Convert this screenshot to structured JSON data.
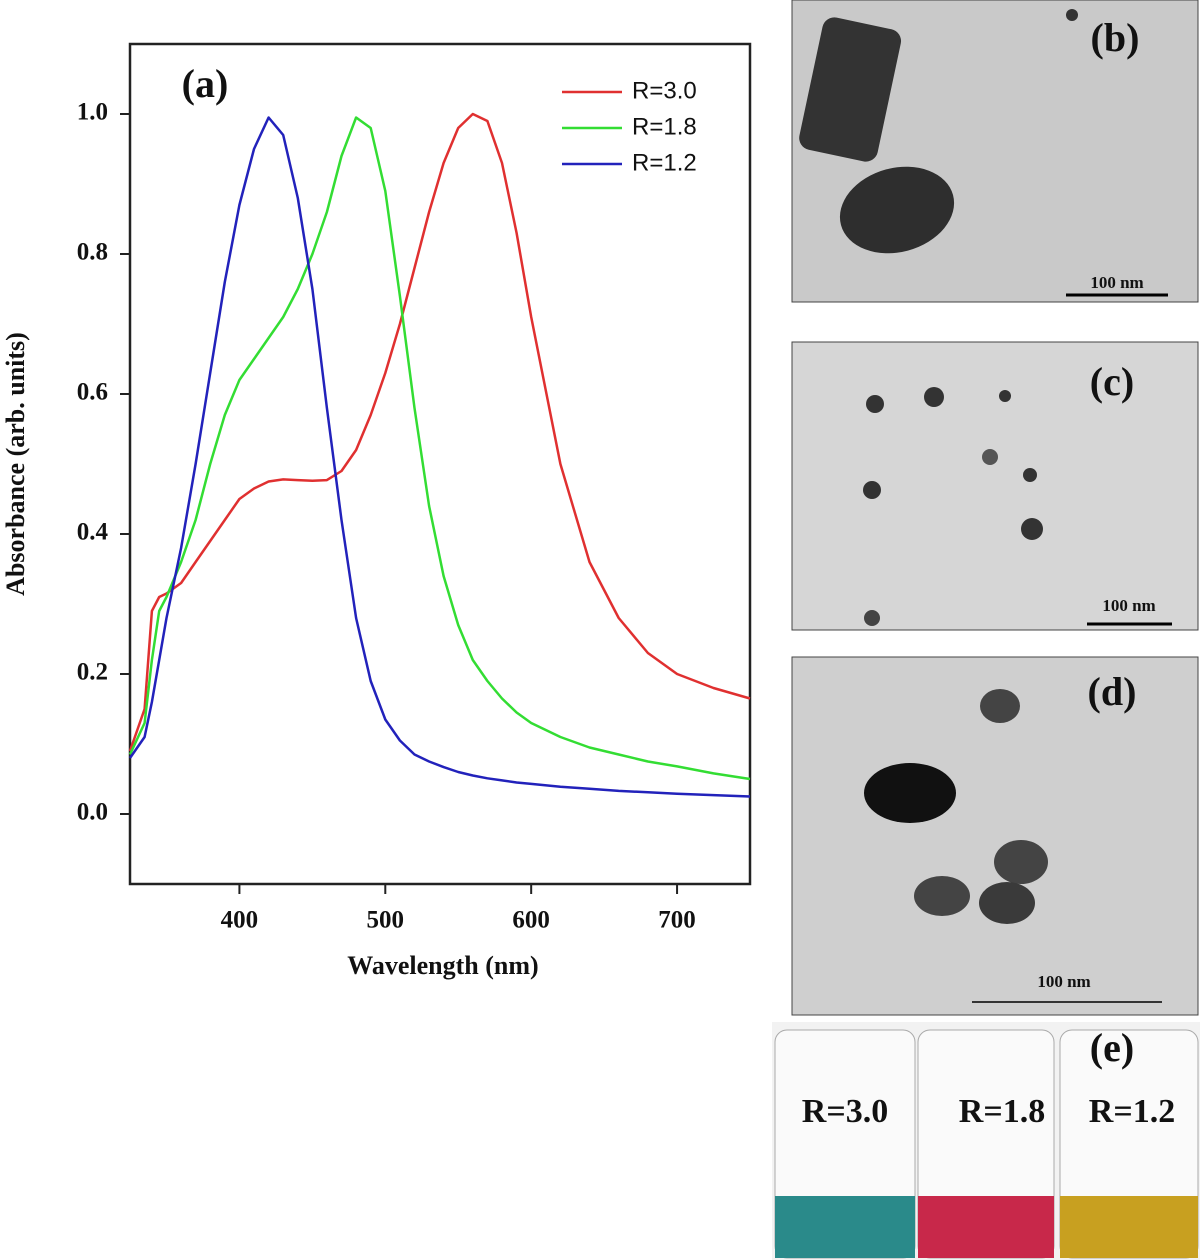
{
  "chart_data": {
    "type": "line",
    "annotation": "(a)",
    "xlabel": "Wavelength (nm)",
    "ylabel": "Absorbance (arb. units)",
    "xlim": [
      325,
      750
    ],
    "ylim": [
      -0.1,
      1.1
    ],
    "xticks": [
      400,
      500,
      600,
      700
    ],
    "yticks": [
      {
        "value": 0,
        "label": "0.0"
      },
      0.2,
      0.4,
      0.6,
      0.8,
      {
        "value": 1,
        "label": "1.0"
      }
    ],
    "legend": "upper right",
    "x": [
      325,
      335,
      340,
      345,
      350,
      360,
      370,
      380,
      390,
      400,
      410,
      420,
      430,
      440,
      450,
      460,
      470,
      480,
      490,
      500,
      510,
      520,
      530,
      540,
      550,
      560,
      570,
      580,
      590,
      600,
      620,
      640,
      660,
      680,
      700,
      725,
      750
    ],
    "series": [
      {
        "name": "R=3.0",
        "color": "#e03030",
        "values": [
          0.09,
          0.15,
          0.29,
          0.31,
          0.315,
          0.33,
          0.36,
          0.39,
          0.42,
          0.45,
          0.465,
          0.475,
          0.478,
          0.477,
          0.476,
          0.477,
          0.49,
          0.52,
          0.57,
          0.63,
          0.7,
          0.78,
          0.86,
          0.93,
          0.98,
          1.0,
          0.99,
          0.93,
          0.83,
          0.71,
          0.5,
          0.36,
          0.28,
          0.23,
          0.2,
          0.18,
          0.165
        ]
      },
      {
        "name": "R=1.8",
        "color": "#33dd33",
        "values": [
          0.085,
          0.13,
          0.22,
          0.29,
          0.31,
          0.36,
          0.42,
          0.5,
          0.57,
          0.62,
          0.65,
          0.68,
          0.71,
          0.75,
          0.8,
          0.86,
          0.94,
          0.995,
          0.98,
          0.89,
          0.74,
          0.58,
          0.44,
          0.34,
          0.27,
          0.22,
          0.19,
          0.165,
          0.145,
          0.13,
          0.11,
          0.095,
          0.085,
          0.075,
          0.068,
          0.058,
          0.05
        ]
      },
      {
        "name": "R=1.2",
        "color": "#2222bb",
        "values": [
          0.08,
          0.11,
          0.16,
          0.22,
          0.28,
          0.38,
          0.5,
          0.63,
          0.76,
          0.87,
          0.95,
          0.995,
          0.97,
          0.88,
          0.75,
          0.58,
          0.42,
          0.28,
          0.19,
          0.135,
          0.105,
          0.085,
          0.075,
          0.067,
          0.06,
          0.055,
          0.051,
          0.048,
          0.045,
          0.043,
          0.039,
          0.036,
          0.033,
          0.031,
          0.029,
          0.027,
          0.025
        ]
      }
    ]
  },
  "panels": [
    {
      "label": "(b)",
      "scale_bar": "100 nm"
    },
    {
      "label": "(c)",
      "scale_bar": "100 nm"
    },
    {
      "label": "(d)",
      "scale_bar": "100 nm"
    },
    {
      "label": "(e)",
      "samples": [
        "R=3.0",
        "R=1.8",
        "R=1.2"
      ]
    }
  ]
}
